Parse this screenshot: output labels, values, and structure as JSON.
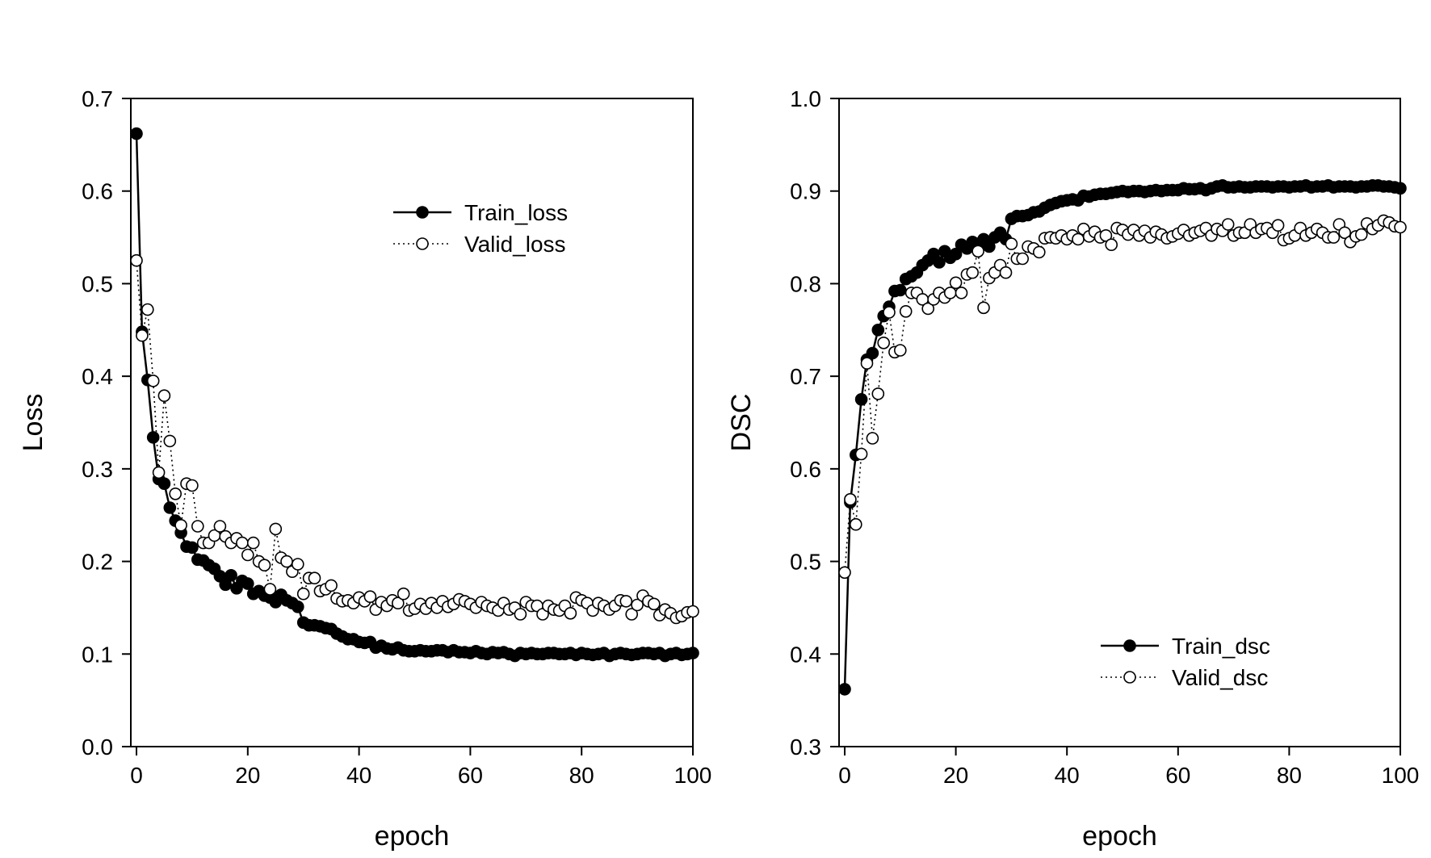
{
  "chart_data": [
    {
      "type": "line",
      "xlabel": "epoch",
      "ylabel": "Loss",
      "xlim": [
        0,
        100
      ],
      "ylim": [
        0,
        0.7
      ],
      "xticks": [
        0,
        20,
        40,
        60,
        80,
        100
      ],
      "yticks": [
        0.0,
        0.1,
        0.2,
        0.3,
        0.4,
        0.5,
        0.6,
        0.7
      ],
      "ytick_labels": [
        "0.0",
        "0.1",
        "0.2",
        "0.3",
        "0.4",
        "0.5",
        "0.6",
        "0.7"
      ],
      "xtick_labels": [
        "0",
        "20",
        "40",
        "60",
        "80",
        "100"
      ],
      "grid": false,
      "legend_position": "top-right",
      "x": [
        0,
        1,
        2,
        3,
        4,
        5,
        6,
        7,
        8,
        9,
        10,
        11,
        12,
        13,
        14,
        15,
        16,
        17,
        18,
        19,
        20,
        21,
        22,
        23,
        24,
        25,
        26,
        27,
        28,
        29,
        30,
        31,
        32,
        33,
        34,
        35,
        36,
        37,
        38,
        39,
        40,
        41,
        42,
        43,
        44,
        45,
        46,
        47,
        48,
        49,
        50,
        51,
        52,
        53,
        54,
        55,
        56,
        57,
        58,
        59,
        60,
        61,
        62,
        63,
        64,
        65,
        66,
        67,
        68,
        69,
        70,
        71,
        72,
        73,
        74,
        75,
        76,
        77,
        78,
        79,
        80,
        81,
        82,
        83,
        84,
        85,
        86,
        87,
        88,
        89,
        90,
        91,
        92,
        93,
        94,
        95,
        96,
        97,
        98,
        99,
        100
      ],
      "series": [
        {
          "name": "Train_loss",
          "marker": "filled-circle",
          "line": "solid",
          "values": [
            0.662,
            0.448,
            0.396,
            0.334,
            0.289,
            0.284,
            0.258,
            0.244,
            0.231,
            0.216,
            0.215,
            0.202,
            0.201,
            0.196,
            0.192,
            0.184,
            0.175,
            0.185,
            0.171,
            0.179,
            0.176,
            0.165,
            0.168,
            0.163,
            0.161,
            0.156,
            0.164,
            0.158,
            0.155,
            0.151,
            0.134,
            0.131,
            0.131,
            0.13,
            0.128,
            0.127,
            0.122,
            0.119,
            0.116,
            0.116,
            0.113,
            0.112,
            0.113,
            0.107,
            0.109,
            0.106,
            0.105,
            0.107,
            0.104,
            0.103,
            0.103,
            0.104,
            0.103,
            0.103,
            0.104,
            0.104,
            0.102,
            0.104,
            0.102,
            0.102,
            0.101,
            0.103,
            0.101,
            0.1,
            0.102,
            0.101,
            0.102,
            0.1,
            0.098,
            0.101,
            0.1,
            0.101,
            0.1,
            0.1,
            0.101,
            0.101,
            0.1,
            0.1,
            0.101,
            0.099,
            0.101,
            0.1,
            0.099,
            0.1,
            0.101,
            0.098,
            0.1,
            0.101,
            0.1,
            0.099,
            0.1,
            0.101,
            0.101,
            0.1,
            0.101,
            0.098,
            0.1,
            0.101,
            0.099,
            0.1,
            0.101
          ]
        },
        {
          "name": "Valid_loss",
          "marker": "open-circle",
          "line": "dotted",
          "values": [
            0.525,
            0.444,
            0.472,
            0.395,
            0.296,
            0.379,
            0.33,
            0.273,
            0.239,
            0.284,
            0.282,
            0.238,
            0.22,
            0.22,
            0.228,
            0.238,
            0.227,
            0.22,
            0.225,
            0.22,
            0.207,
            0.22,
            0.2,
            0.196,
            0.17,
            0.235,
            0.204,
            0.2,
            0.189,
            0.197,
            0.165,
            0.182,
            0.182,
            0.168,
            0.17,
            0.174,
            0.16,
            0.157,
            0.158,
            0.155,
            0.161,
            0.157,
            0.162,
            0.148,
            0.156,
            0.152,
            0.158,
            0.155,
            0.165,
            0.147,
            0.149,
            0.154,
            0.149,
            0.155,
            0.15,
            0.157,
            0.151,
            0.154,
            0.159,
            0.157,
            0.154,
            0.15,
            0.156,
            0.152,
            0.15,
            0.147,
            0.155,
            0.148,
            0.15,
            0.143,
            0.156,
            0.152,
            0.152,
            0.143,
            0.152,
            0.148,
            0.147,
            0.152,
            0.144,
            0.161,
            0.158,
            0.155,
            0.147,
            0.155,
            0.152,
            0.148,
            0.152,
            0.158,
            0.157,
            0.143,
            0.153,
            0.163,
            0.157,
            0.154,
            0.142,
            0.148,
            0.144,
            0.139,
            0.141,
            0.145,
            0.146
          ]
        }
      ]
    },
    {
      "type": "line",
      "xlabel": "epoch",
      "ylabel": "DSC",
      "xlim": [
        0,
        100
      ],
      "ylim": [
        0.3,
        1.0
      ],
      "xticks": [
        0,
        20,
        40,
        60,
        80,
        100
      ],
      "yticks": [
        0.3,
        0.4,
        0.5,
        0.6,
        0.7,
        0.8,
        0.9,
        1.0
      ],
      "ytick_labels": [
        "0.3",
        "0.4",
        "0.5",
        "0.6",
        "0.7",
        "0.8",
        "0.9",
        "1.0"
      ],
      "xtick_labels": [
        "0",
        "20",
        "40",
        "60",
        "80",
        "100"
      ],
      "grid": false,
      "legend_position": "bottom-right",
      "x": [
        0,
        1,
        2,
        3,
        4,
        5,
        6,
        7,
        8,
        9,
        10,
        11,
        12,
        13,
        14,
        15,
        16,
        17,
        18,
        19,
        20,
        21,
        22,
        23,
        24,
        25,
        26,
        27,
        28,
        29,
        30,
        31,
        32,
        33,
        34,
        35,
        36,
        37,
        38,
        39,
        40,
        41,
        42,
        43,
        44,
        45,
        46,
        47,
        48,
        49,
        50,
        51,
        52,
        53,
        54,
        55,
        56,
        57,
        58,
        59,
        60,
        61,
        62,
        63,
        64,
        65,
        66,
        67,
        68,
        69,
        70,
        71,
        72,
        73,
        74,
        75,
        76,
        77,
        78,
        79,
        80,
        81,
        82,
        83,
        84,
        85,
        86,
        87,
        88,
        89,
        90,
        91,
        92,
        93,
        94,
        95,
        96,
        97,
        98,
        99,
        100
      ],
      "series": [
        {
          "name": "Train_dsc",
          "marker": "filled-circle",
          "line": "solid",
          "values": [
            0.362,
            0.564,
            0.615,
            0.675,
            0.718,
            0.725,
            0.75,
            0.765,
            0.775,
            0.792,
            0.793,
            0.805,
            0.808,
            0.812,
            0.82,
            0.825,
            0.832,
            0.823,
            0.835,
            0.828,
            0.832,
            0.842,
            0.838,
            0.845,
            0.843,
            0.848,
            0.84,
            0.85,
            0.855,
            0.848,
            0.87,
            0.873,
            0.873,
            0.874,
            0.877,
            0.878,
            0.882,
            0.885,
            0.887,
            0.889,
            0.89,
            0.891,
            0.89,
            0.895,
            0.894,
            0.896,
            0.897,
            0.897,
            0.898,
            0.899,
            0.9,
            0.899,
            0.9,
            0.9,
            0.899,
            0.9,
            0.901,
            0.9,
            0.901,
            0.901,
            0.901,
            0.903,
            0.902,
            0.902,
            0.903,
            0.901,
            0.903,
            0.905,
            0.906,
            0.904,
            0.904,
            0.905,
            0.904,
            0.904,
            0.905,
            0.905,
            0.905,
            0.904,
            0.905,
            0.905,
            0.904,
            0.905,
            0.905,
            0.906,
            0.904,
            0.905,
            0.905,
            0.906,
            0.904,
            0.905,
            0.905,
            0.905,
            0.904,
            0.905,
            0.905,
            0.906,
            0.906,
            0.905,
            0.905,
            0.904,
            0.903
          ]
        },
        {
          "name": "Valid_dsc",
          "marker": "open-circle",
          "line": "dotted",
          "values": [
            0.488,
            0.567,
            0.54,
            0.616,
            0.714,
            0.633,
            0.681,
            0.736,
            0.769,
            0.726,
            0.728,
            0.77,
            0.79,
            0.79,
            0.783,
            0.773,
            0.783,
            0.79,
            0.785,
            0.79,
            0.801,
            0.79,
            0.81,
            0.812,
            0.835,
            0.774,
            0.806,
            0.812,
            0.82,
            0.812,
            0.843,
            0.827,
            0.827,
            0.84,
            0.838,
            0.834,
            0.849,
            0.85,
            0.849,
            0.852,
            0.848,
            0.852,
            0.848,
            0.859,
            0.851,
            0.856,
            0.85,
            0.852,
            0.842,
            0.86,
            0.858,
            0.853,
            0.858,
            0.852,
            0.857,
            0.85,
            0.856,
            0.853,
            0.849,
            0.851,
            0.854,
            0.858,
            0.852,
            0.855,
            0.857,
            0.86,
            0.852,
            0.859,
            0.857,
            0.864,
            0.852,
            0.855,
            0.855,
            0.864,
            0.855,
            0.859,
            0.86,
            0.855,
            0.863,
            0.847,
            0.849,
            0.852,
            0.86,
            0.852,
            0.855,
            0.859,
            0.855,
            0.85,
            0.85,
            0.864,
            0.855,
            0.845,
            0.851,
            0.853,
            0.865,
            0.859,
            0.863,
            0.868,
            0.866,
            0.862,
            0.861
          ]
        }
      ]
    }
  ]
}
